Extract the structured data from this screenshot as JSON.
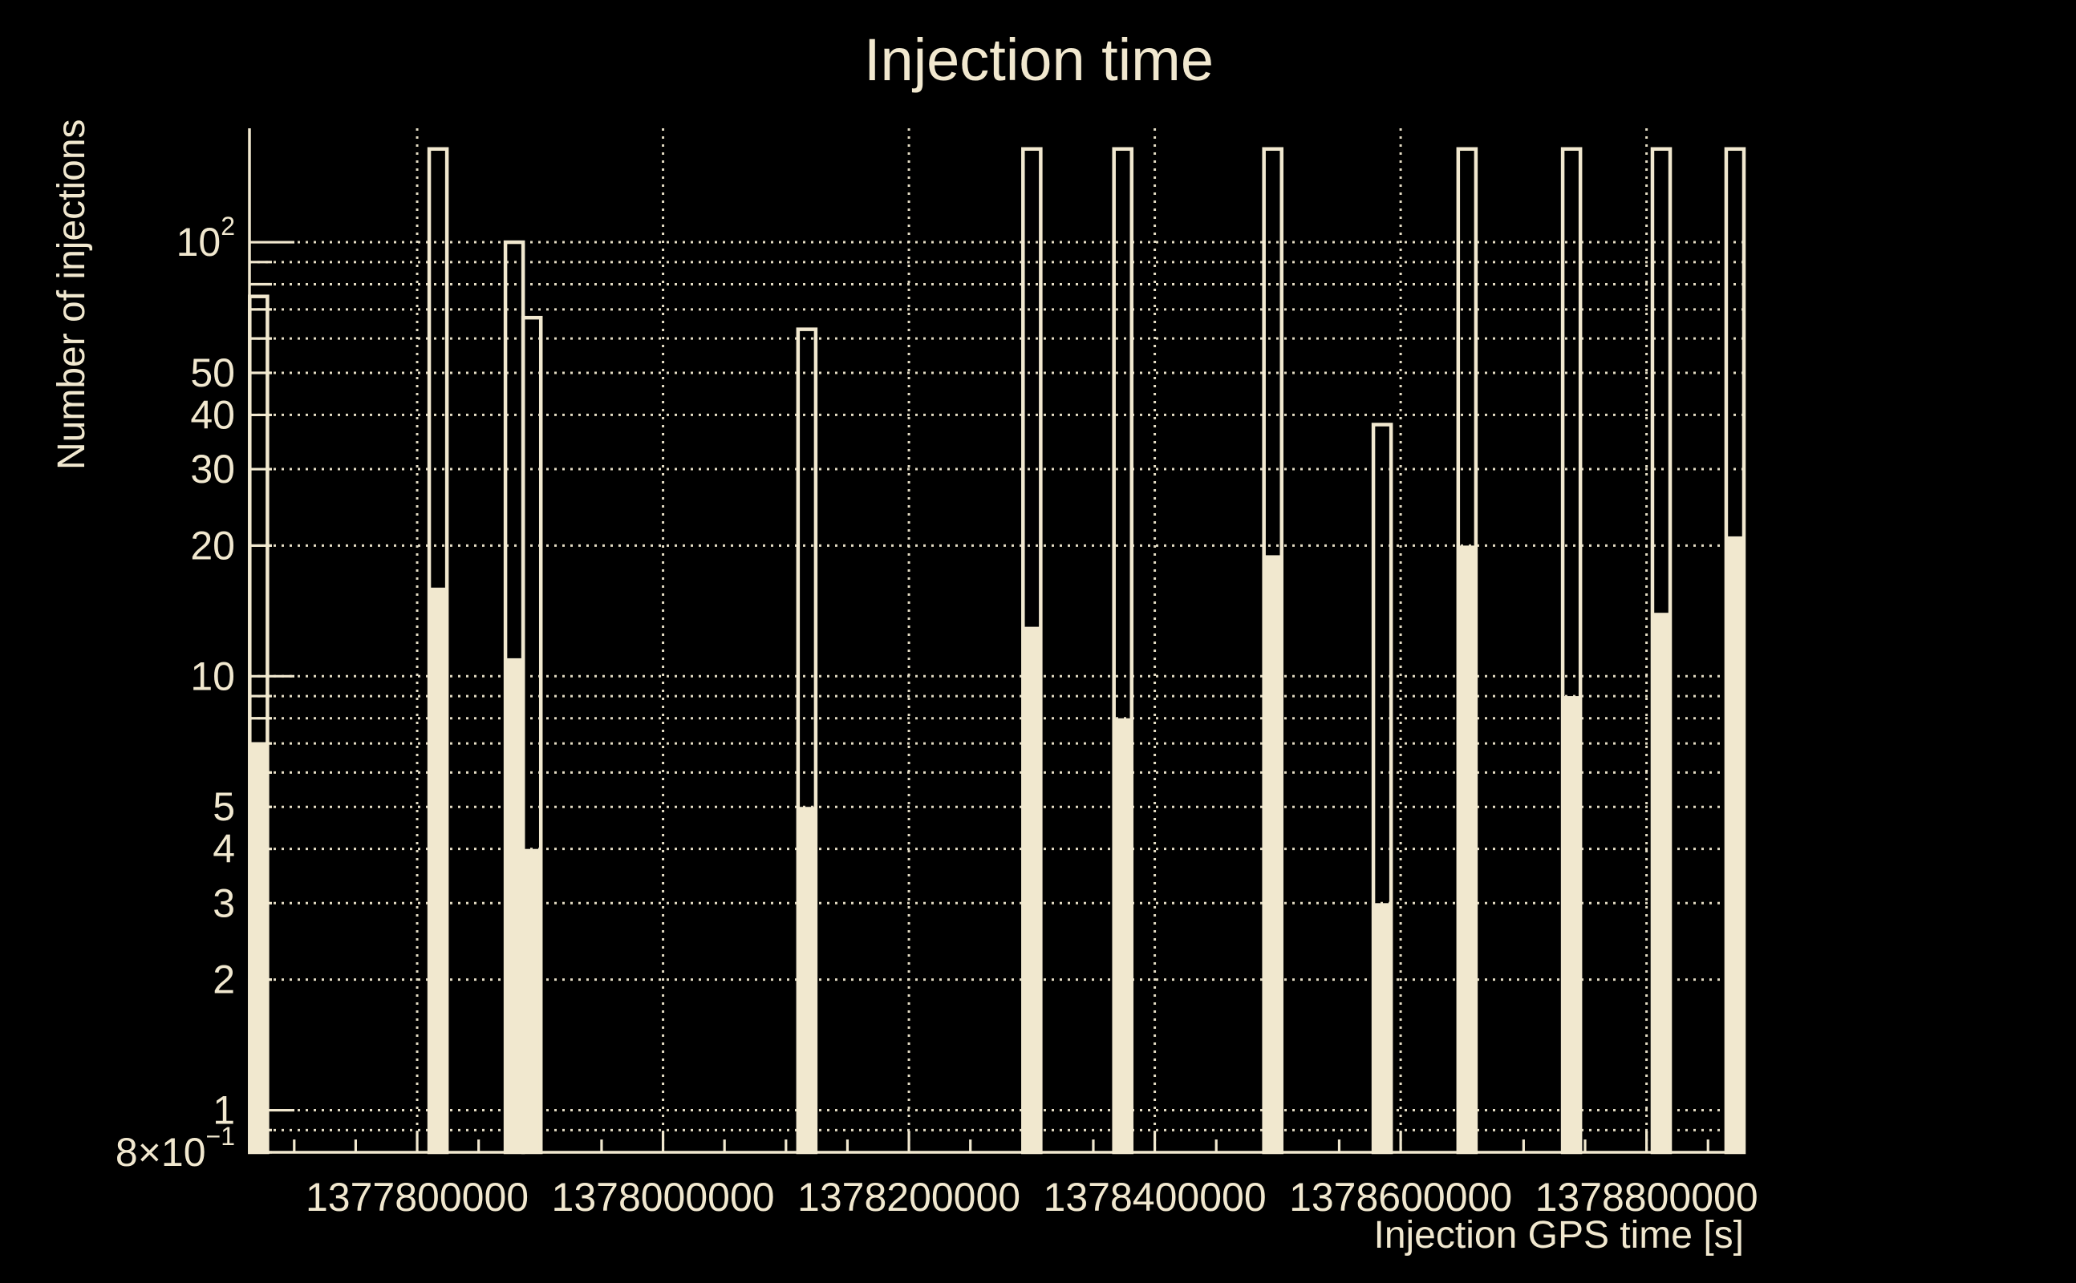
{
  "colors": {
    "background": "#000000",
    "foreground": "#F1E8CF"
  },
  "chart_data": {
    "type": "bar",
    "title": "Injection time",
    "xlabel": "Injection GPS time [s]",
    "ylabel": "Number of injections",
    "grid": "dotted",
    "legend": "none",
    "x_axis": {
      "min": 1377663600,
      "max": 1378879200,
      "minor_tick_step": 50000,
      "first_minor_tick": 1377700000,
      "major_tick_step": 200000,
      "major_ticks": [
        {
          "t": 1377800000,
          "label": "1377800000"
        },
        {
          "t": 1378000000,
          "label": "1378000000"
        },
        {
          "t": 1378200000,
          "label": "1378200000"
        },
        {
          "t": 1378400000,
          "label": "1378400000"
        },
        {
          "t": 1378600000,
          "label": "1378600000"
        },
        {
          "t": 1378800000,
          "label": "1378800000"
        }
      ]
    },
    "y_axis": {
      "scale": "log",
      "min": 0.8,
      "max": 183,
      "ticks": [
        {
          "v": 0.8,
          "label": "8×10",
          "exp": "−1",
          "major": false
        },
        {
          "v": 0.9,
          "major": false
        },
        {
          "v": 1,
          "label": "1",
          "major": true
        },
        {
          "v": 2,
          "label": "2",
          "major": false
        },
        {
          "v": 3,
          "label": "3",
          "major": false
        },
        {
          "v": 4,
          "label": "4",
          "major": false
        },
        {
          "v": 5,
          "label": "5",
          "major": false
        },
        {
          "v": 6,
          "major": false
        },
        {
          "v": 7,
          "major": false
        },
        {
          "v": 8,
          "major": false
        },
        {
          "v": 9,
          "major": false
        },
        {
          "v": 10,
          "label": "10",
          "major": true
        },
        {
          "v": 20,
          "label": "20",
          "major": false
        },
        {
          "v": 30,
          "label": "30",
          "major": false
        },
        {
          "v": 40,
          "label": "40",
          "major": false
        },
        {
          "v": 50,
          "label": "50",
          "major": false
        },
        {
          "v": 60,
          "major": false
        },
        {
          "v": 70,
          "major": false
        },
        {
          "v": 80,
          "major": false
        },
        {
          "v": 90,
          "major": false
        },
        {
          "v": 100,
          "label": "10",
          "exp": "2",
          "major": true
        }
      ]
    },
    "bin_width_s": 14400,
    "series_styles": [
      "hollow-outline",
      "solid-fill"
    ],
    "bars": [
      {
        "t": 1377671000,
        "outline": 75,
        "fill": 7
      },
      {
        "t": 1377817000,
        "outline": 164,
        "fill": 16
      },
      {
        "t": 1377879000,
        "outline": 100,
        "fill": 11
      },
      {
        "t": 1377893400,
        "outline": 67,
        "fill": 4
      },
      {
        "t": 1378117000,
        "outline": 63,
        "fill": 5
      },
      {
        "t": 1378300000,
        "outline": 164,
        "fill": 13
      },
      {
        "t": 1378374000,
        "outline": 164,
        "fill": 8
      },
      {
        "t": 1378496000,
        "outline": 164,
        "fill": 19
      },
      {
        "t": 1378585000,
        "outline": 38,
        "fill": 3
      },
      {
        "t": 1378654000,
        "outline": 164,
        "fill": 20
      },
      {
        "t": 1378739000,
        "outline": 164,
        "fill": 9
      },
      {
        "t": 1378812000,
        "outline": 164,
        "fill": 14
      },
      {
        "t": 1378872000,
        "outline": 164,
        "fill": 21
      }
    ]
  }
}
